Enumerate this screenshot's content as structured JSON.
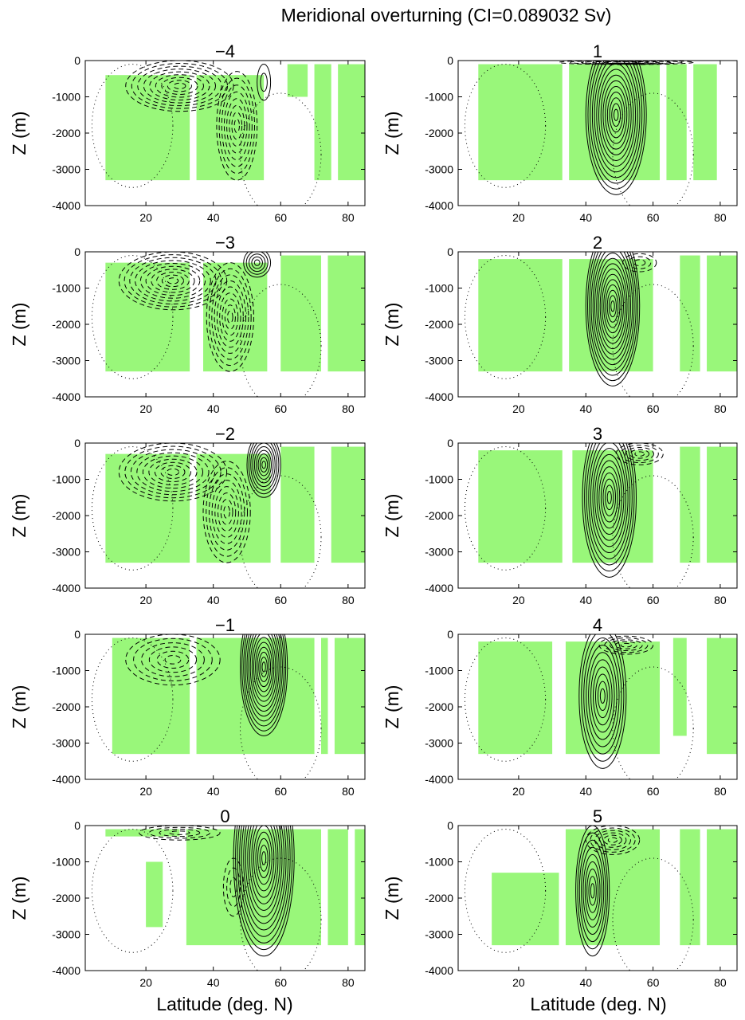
{
  "figure": {
    "title": "Meridional overturning (CI=0.089032 Sv)",
    "ylabel": "Z (m)",
    "xlabel": "Latitude (deg. N)"
  },
  "colors": {
    "shading": "#99f77a",
    "contour": "#000000",
    "background": "#ffffff"
  },
  "chart_data": {
    "type": "contour",
    "title": "Meridional overturning (CI=0.089032 Sv)",
    "contour_interval_sv": 0.089032,
    "xlabel": "Latitude (deg. N)",
    "ylabel": "Z (m)",
    "xlim": [
      2,
      85
    ],
    "ylim": [
      -4000,
      0
    ],
    "xticks": [
      20,
      40,
      60,
      80
    ],
    "yticks": [
      0,
      -1000,
      -2000,
      -3000,
      -4000
    ],
    "ytick_labels": [
      "0",
      "-1000",
      "-2000",
      "-3000",
      "-4000"
    ],
    "grid": false,
    "legend": "none",
    "line_styles": {
      "positive": "solid",
      "negative": "dashed",
      "zero": "dotted"
    },
    "panels": [
      {
        "label": "−4",
        "lag": -4,
        "column": "left",
        "positive_cell": {
          "lat": 55,
          "depth": -600,
          "levels": 2,
          "lat_halfwidth": 2,
          "depth_halfwidth": 500
        },
        "negative_cells": [
          {
            "lat": 30,
            "depth": -700,
            "levels": 9,
            "lat_halfwidth": 16,
            "depth_halfwidth": 700
          },
          {
            "lat": 47,
            "depth": -1800,
            "levels": 8,
            "lat_halfwidth": 6,
            "depth_halfwidth": 1500
          }
        ],
        "shaded_regions": [
          [
            8,
            -400,
            33,
            -3300
          ],
          [
            35,
            -400,
            55,
            -3300
          ],
          [
            62,
            -100,
            68,
            -1000
          ],
          [
            70,
            -100,
            75,
            -3300
          ],
          [
            77,
            -100,
            85,
            -3300
          ]
        ]
      },
      {
        "label": "1",
        "lag": 1,
        "column": "right",
        "positive_cell": {
          "lat": 49,
          "depth": -1500,
          "levels": 14,
          "lat_halfwidth": 9,
          "depth_halfwidth": 2200
        },
        "negative_cells": [
          {
            "lat": 52,
            "depth": -50,
            "levels": 6,
            "lat_halfwidth": 20,
            "depth_halfwidth": 60
          }
        ],
        "shaded_regions": [
          [
            8,
            -100,
            33,
            -3300
          ],
          [
            35,
            -100,
            62,
            -3300
          ],
          [
            64,
            -100,
            70,
            -3300
          ],
          [
            72,
            -100,
            79,
            -3300
          ]
        ]
      },
      {
        "label": "−3",
        "lag": -3,
        "column": "left",
        "positive_cell": {
          "lat": 53,
          "depth": -300,
          "levels": 5,
          "lat_halfwidth": 4,
          "depth_halfwidth": 400
        },
        "negative_cells": [
          {
            "lat": 28,
            "depth": -800,
            "levels": 10,
            "lat_halfwidth": 16,
            "depth_halfwidth": 800
          },
          {
            "lat": 45,
            "depth": -1800,
            "levels": 9,
            "lat_halfwidth": 7,
            "depth_halfwidth": 1500
          }
        ],
        "shaded_regions": [
          [
            8,
            -300,
            33,
            -3300
          ],
          [
            37,
            -300,
            56,
            -3300
          ],
          [
            60,
            -100,
            72,
            -3300
          ],
          [
            74,
            -100,
            85,
            -3300
          ]
        ]
      },
      {
        "label": "2",
        "lag": 2,
        "column": "right",
        "positive_cell": {
          "lat": 48,
          "depth": -1500,
          "levels": 15,
          "lat_halfwidth": 8,
          "depth_halfwidth": 2200
        },
        "negative_cells": [
          {
            "lat": 56,
            "depth": -300,
            "levels": 3,
            "lat_halfwidth": 5,
            "depth_halfwidth": 250
          }
        ],
        "shaded_regions": [
          [
            8,
            -200,
            33,
            -3300
          ],
          [
            35,
            -200,
            60,
            -3300
          ],
          [
            68,
            -100,
            74,
            -3300
          ],
          [
            76,
            -100,
            85,
            -3300
          ]
        ]
      },
      {
        "label": "−2",
        "lag": -2,
        "column": "left",
        "positive_cell": {
          "lat": 55,
          "depth": -600,
          "levels": 9,
          "lat_halfwidth": 5,
          "depth_halfwidth": 900
        },
        "negative_cells": [
          {
            "lat": 28,
            "depth": -800,
            "levels": 9,
            "lat_halfwidth": 16,
            "depth_halfwidth": 800
          },
          {
            "lat": 44,
            "depth": -1900,
            "levels": 8,
            "lat_halfwidth": 7,
            "depth_halfwidth": 1400
          }
        ],
        "shaded_regions": [
          [
            8,
            -300,
            33,
            -3300
          ],
          [
            35,
            -300,
            57,
            -3300
          ],
          [
            60,
            -100,
            70,
            -3300
          ],
          [
            75,
            -100,
            85,
            -3300
          ]
        ]
      },
      {
        "label": "3",
        "lag": 3,
        "column": "right",
        "positive_cell": {
          "lat": 47,
          "depth": -1500,
          "levels": 13,
          "lat_halfwidth": 8,
          "depth_halfwidth": 2200
        },
        "negative_cells": [
          {
            "lat": 56,
            "depth": -300,
            "levels": 5,
            "lat_halfwidth": 7,
            "depth_halfwidth": 300
          }
        ],
        "shaded_regions": [
          [
            8,
            -200,
            33,
            -3300
          ],
          [
            36,
            -200,
            60,
            -3300
          ],
          [
            68,
            -100,
            74,
            -3300
          ],
          [
            76,
            -100,
            85,
            -3300
          ]
        ]
      },
      {
        "label": "−1",
        "lag": -1,
        "column": "left",
        "positive_cell": {
          "lat": 55,
          "depth": -900,
          "levels": 14,
          "lat_halfwidth": 7,
          "depth_halfwidth": 1900
        },
        "negative_cells": [
          {
            "lat": 28,
            "depth": -700,
            "levels": 6,
            "lat_halfwidth": 14,
            "depth_halfwidth": 700
          }
        ],
        "shaded_regions": [
          [
            10,
            -100,
            33,
            -3300
          ],
          [
            35,
            -100,
            70,
            -3300
          ],
          [
            72,
            -100,
            74,
            -3300
          ],
          [
            76,
            -100,
            85,
            -3300
          ]
        ]
      },
      {
        "label": "4",
        "lag": 4,
        "column": "right",
        "positive_cell": {
          "lat": 45,
          "depth": -1700,
          "levels": 10,
          "lat_halfwidth": 7,
          "depth_halfwidth": 2000
        },
        "negative_cells": [
          {
            "lat": 52,
            "depth": -300,
            "levels": 5,
            "lat_halfwidth": 8,
            "depth_halfwidth": 250
          }
        ],
        "shaded_regions": [
          [
            8,
            -200,
            30,
            -3300
          ],
          [
            34,
            -200,
            62,
            -3300
          ],
          [
            66,
            -100,
            70,
            -2800
          ],
          [
            76,
            -100,
            85,
            -3300
          ]
        ]
      },
      {
        "label": "0",
        "lag": 0,
        "column": "left",
        "positive_cell": {
          "lat": 55,
          "depth": -900,
          "levels": 15,
          "lat_halfwidth": 9,
          "depth_halfwidth": 2700
        },
        "negative_cells": [
          {
            "lat": 30,
            "depth": -200,
            "levels": 4,
            "lat_halfwidth": 12,
            "depth_halfwidth": 200
          },
          {
            "lat": 46,
            "depth": -1700,
            "levels": 3,
            "lat_halfwidth": 3,
            "depth_halfwidth": 800
          }
        ],
        "shaded_regions": [
          [
            8,
            -100,
            30,
            -300
          ],
          [
            20,
            -1000,
            25,
            -2800
          ],
          [
            32,
            -100,
            72,
            -3300
          ],
          [
            74,
            -100,
            80,
            -3300
          ],
          [
            82,
            -100,
            85,
            -3300
          ]
        ]
      },
      {
        "label": "5",
        "lag": 5,
        "column": "right",
        "positive_cell": {
          "lat": 42,
          "depth": -1800,
          "levels": 9,
          "lat_halfwidth": 5,
          "depth_halfwidth": 1800
        },
        "negative_cells": [
          {
            "lat": 48,
            "depth": -400,
            "levels": 6,
            "lat_halfwidth": 8,
            "depth_halfwidth": 400
          }
        ],
        "shaded_regions": [
          [
            12,
            -1300,
            32,
            -3300
          ],
          [
            34,
            -100,
            62,
            -3300
          ],
          [
            68,
            -100,
            74,
            -3300
          ],
          [
            76,
            -100,
            85,
            -3300
          ]
        ]
      }
    ]
  }
}
